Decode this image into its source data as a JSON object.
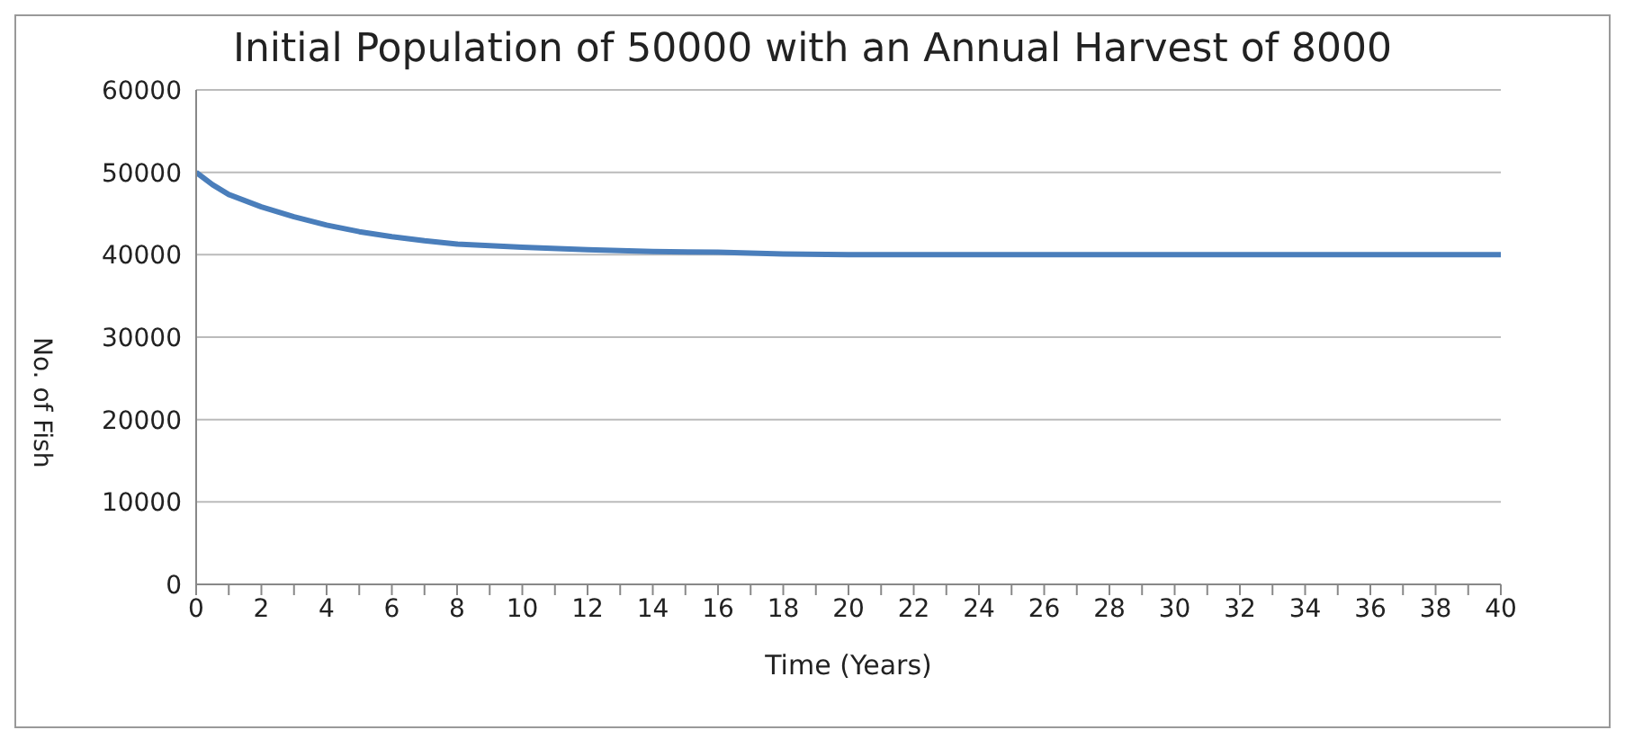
{
  "chart_data": {
    "type": "line",
    "title": "Initial Population of 50000 with an Annual Harvest of 8000",
    "xlabel": "Time (Years)",
    "ylabel": "No. of Fish",
    "series": [
      {
        "color": "#4a7ebb",
        "x": [
          0,
          0.5,
          1,
          2,
          3,
          4,
          5,
          6,
          7,
          8,
          10,
          12,
          14,
          16,
          18,
          20,
          25,
          30,
          35,
          40
        ],
        "values": [
          50000,
          48500,
          47300,
          45800,
          44600,
          43600,
          42800,
          42200,
          41700,
          41300,
          40900,
          40600,
          40400,
          40300,
          40100,
          40000,
          40000,
          40000,
          40000,
          40000
        ]
      }
    ],
    "xlim": [
      0,
      40
    ],
    "xticks": [
      0,
      {
        "value": 1,
        "label": null
      },
      2,
      {
        "value": 3,
        "label": null
      },
      4,
      {
        "value": 5,
        "label": null
      },
      6,
      {
        "value": 7,
        "label": null
      },
      8,
      {
        "value": 9,
        "label": null
      },
      10,
      {
        "value": 11,
        "label": null
      },
      12,
      {
        "value": 13,
        "label": null
      },
      14,
      {
        "value": 15,
        "label": null
      },
      16,
      {
        "value": 17,
        "label": null
      },
      18,
      {
        "value": 19,
        "label": null
      },
      20,
      {
        "value": 21,
        "label": null
      },
      22,
      {
        "value": 23,
        "label": null
      },
      24,
      {
        "value": 25,
        "label": null
      },
      26,
      {
        "value": 27,
        "label": null
      },
      28,
      {
        "value": 29,
        "label": null
      },
      30,
      {
        "value": 31,
        "label": null
      },
      32,
      {
        "value": 33,
        "label": null
      },
      34,
      {
        "value": 35,
        "label": null
      },
      36,
      {
        "value": 37,
        "label": null
      },
      38,
      {
        "value": 39,
        "label": null
      },
      40
    ],
    "ylim": [
      0,
      60000
    ],
    "yticks": [
      0,
      10000,
      20000,
      30000,
      40000,
      50000,
      60000
    ],
    "grid": "y",
    "legend": false,
    "marker": "none",
    "line_style": "solid"
  }
}
